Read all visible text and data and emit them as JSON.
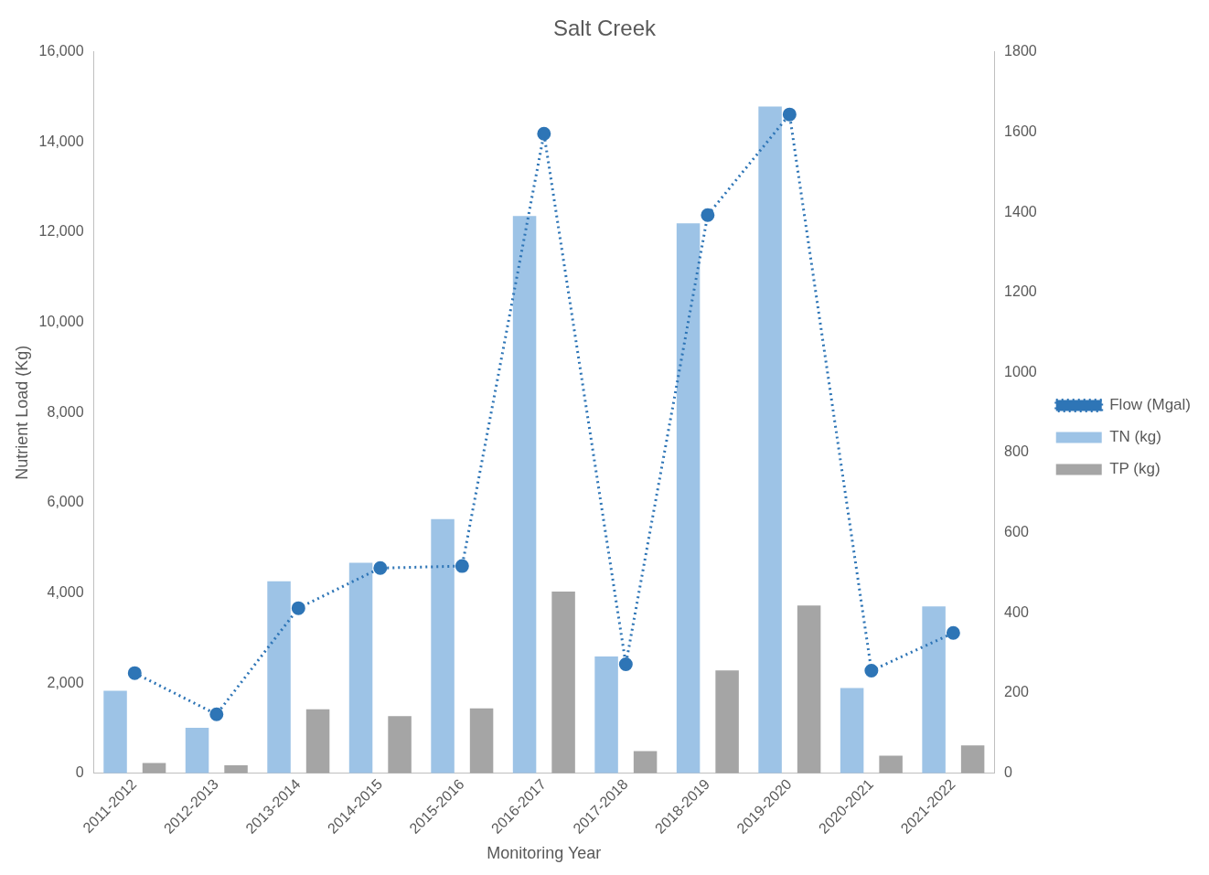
{
  "chart_data": {
    "type": "bar",
    "title": "Salt Creek",
    "xlabel": "Monitoring Year",
    "ylabel": "Nutrient Load (Kg)",
    "categories": [
      "2011-2012",
      "2012-2013",
      "2013-2014",
      "2014-2015",
      "2015-2016",
      "2016-2017",
      "2017-2018",
      "2018-2019",
      "2019-2020",
      "2020-2021",
      "2021-2022"
    ],
    "series": [
      {
        "name": "TN (kg)",
        "color": "#9dc3e6",
        "values": [
          1830,
          1010,
          4260,
          4670,
          5640,
          12360,
          2590,
          12200,
          14790,
          1890,
          3700
        ]
      },
      {
        "name": "TP (kg)",
        "color": "#a5a5a5",
        "values": [
          230,
          175,
          1420,
          1265,
          1440,
          4030,
          490,
          2280,
          3720,
          390,
          620
        ]
      },
      {
        "name": "Flow (Mgal)",
        "type": "line",
        "axis": "y2",
        "color": "#2e75b6",
        "marker": "circle",
        "line_style": "dotted",
        "values": [
          250,
          147,
          412,
          512,
          517,
          1596,
          272,
          1393,
          1644,
          256,
          350
        ]
      }
    ],
    "ylim": [
      0,
      16000
    ],
    "yticks": [
      {
        "value": 0,
        "label": "0"
      },
      {
        "value": 2000,
        "label": "2,000"
      },
      {
        "value": 4000,
        "label": "4,000"
      },
      {
        "value": 6000,
        "label": "6,000"
      },
      {
        "value": 8000,
        "label": "8,000"
      },
      {
        "value": 10000,
        "label": "10,000"
      },
      {
        "value": 12000,
        "label": "12,000"
      },
      {
        "value": 14000,
        "label": "14,000"
      },
      {
        "value": 16000,
        "label": "16,000"
      }
    ],
    "y2lim": [
      0,
      1800
    ],
    "y2ticks": [
      0,
      200,
      400,
      600,
      800,
      1000,
      1200,
      1400,
      1600,
      1800
    ],
    "legend": "right"
  }
}
